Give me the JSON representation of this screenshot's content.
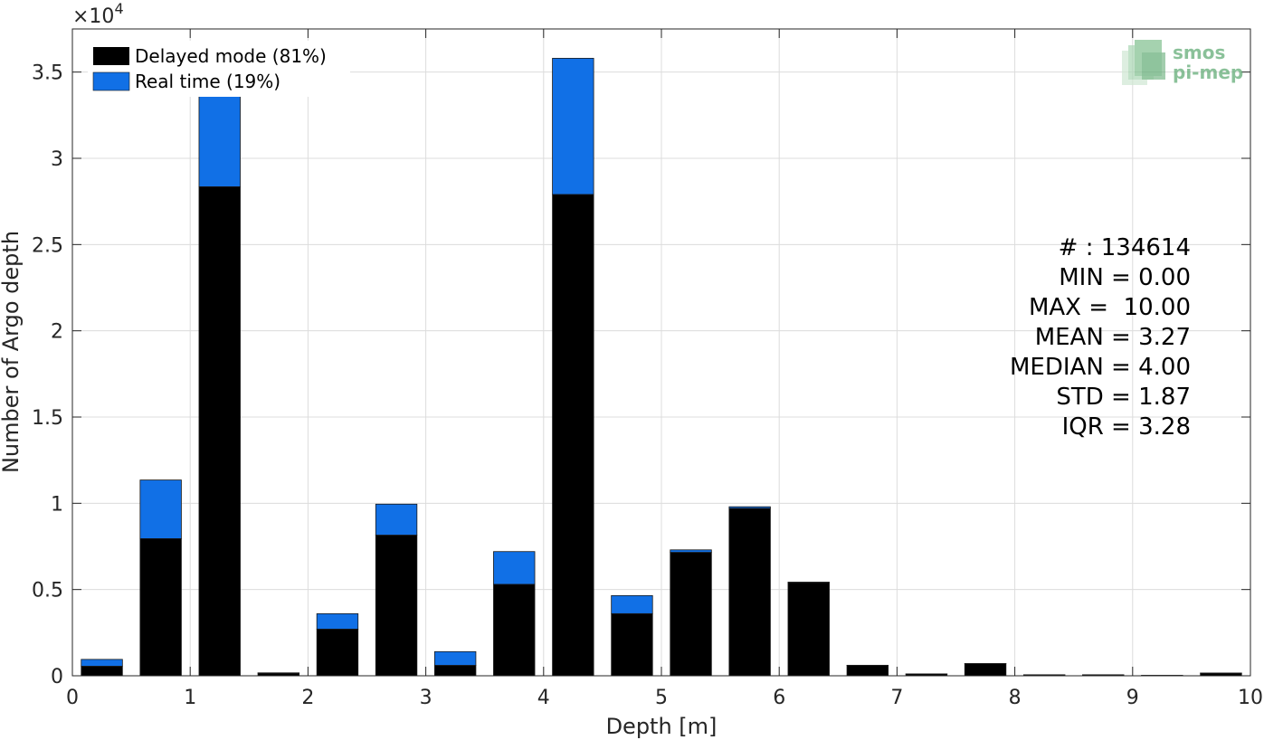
{
  "chart_data": {
    "type": "bar",
    "stacked": true,
    "xlabel": "Depth [m]",
    "ylabel": "Number of Argo depth",
    "y_exponent_label": "×10",
    "y_exponent_power": "4",
    "xlim": [
      0,
      10
    ],
    "ylim": [
      0,
      37500
    ],
    "x_ticks": [
      0,
      1,
      2,
      3,
      4,
      5,
      6,
      7,
      8,
      9,
      10
    ],
    "x_tick_labels": [
      "0",
      "1",
      "2",
      "3",
      "4",
      "5",
      "6",
      "7",
      "8",
      "9",
      "10"
    ],
    "y_ticks": [
      0,
      5000,
      10000,
      15000,
      20000,
      25000,
      30000,
      35000
    ],
    "y_tick_labels": [
      "0",
      "0.5",
      "1",
      "1.5",
      "2",
      "2.5",
      "3",
      "3.5"
    ],
    "grid": true,
    "legend_position": "top-left",
    "bar_width": 0.35,
    "x": [
      0.25,
      0.75,
      1.25,
      1.75,
      2.25,
      2.75,
      3.25,
      3.75,
      4.25,
      4.75,
      5.25,
      5.75,
      6.25,
      6.75,
      7.25,
      7.75,
      8.25,
      8.75,
      9.25,
      9.75
    ],
    "series": [
      {
        "name": "Delayed mode (81%)",
        "color": "#000000",
        "values": [
          550,
          7950,
          28350,
          150,
          2700,
          8150,
          600,
          5300,
          27900,
          3600,
          7150,
          9700,
          5400,
          600,
          100,
          700,
          50,
          50,
          20,
          150
        ]
      },
      {
        "name": "Real time (19%)",
        "color": "#1170e6",
        "values": [
          400,
          3400,
          6600,
          20,
          900,
          1800,
          800,
          1900,
          7900,
          1050,
          150,
          100,
          30,
          10,
          10,
          10,
          10,
          10,
          5,
          10
        ]
      }
    ],
    "stats": [
      "# : 134614",
      "MIN = 0.00",
      "MAX =  10.00",
      "MEAN = 3.27",
      "MEDIAN = 4.00",
      "STD = 1.87",
      "IQR = 3.28"
    ]
  },
  "logo": {
    "line1": "smos",
    "line2": "pi-mep",
    "color": "#5aa86e"
  }
}
